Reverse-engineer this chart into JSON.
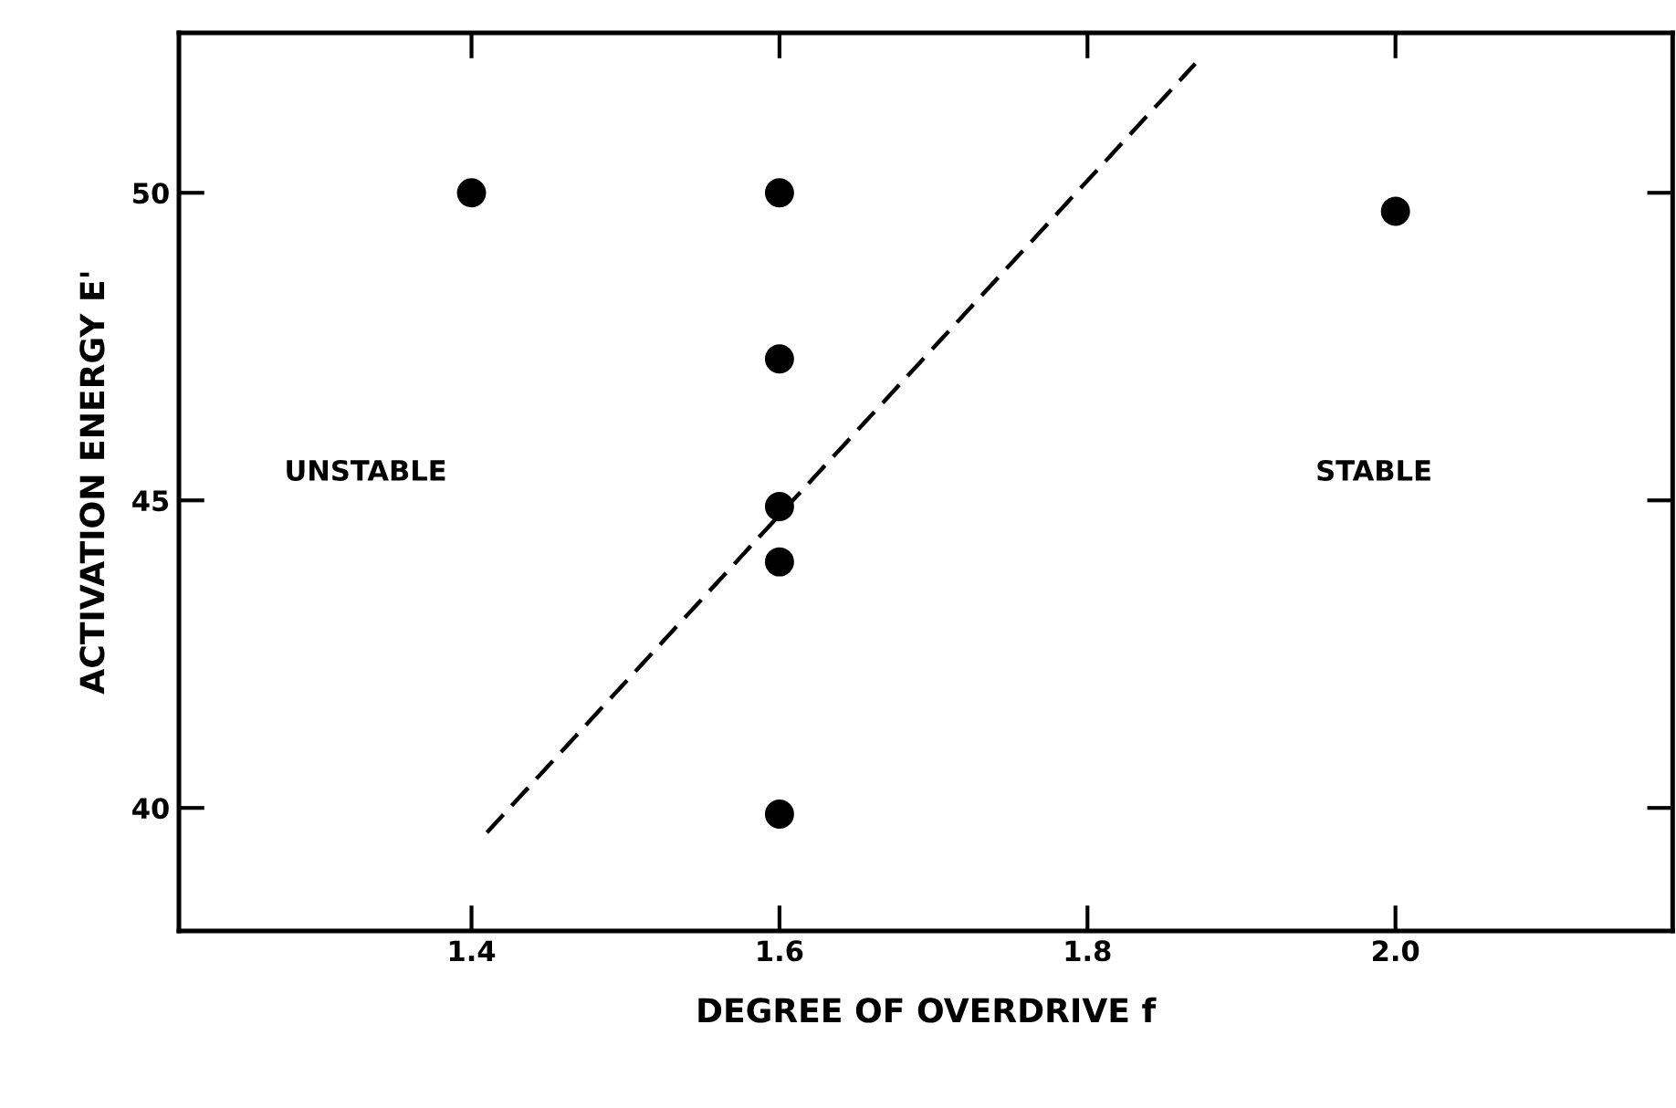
{
  "chart_data": {
    "type": "scatter",
    "xlabel": "DEGREE OF OVERDRIVE f",
    "ylabel": "ACTIVATION ENERGY E'",
    "series": [
      {
        "color": "#000000",
        "marker": "circle",
        "x": [
          1.4,
          1.6,
          1.6,
          1.6,
          1.6,
          1.6,
          2.0
        ],
        "values": [
          50,
          50,
          47.3,
          44.9,
          44.0,
          39.9,
          49.7
        ]
      },
      {
        "type": "line",
        "color": "#000000",
        "line_style": "dashed",
        "marker": "none",
        "x": [
          1.41,
          1.87
        ],
        "values": [
          39.6,
          52.1
        ]
      }
    ],
    "xlim": [
      1.21,
      2.18
    ],
    "ylim": [
      38.0,
      52.6
    ],
    "xticks": [
      1.4,
      1.6,
      1.8,
      {
        "value": 2.0,
        "label": "2.0"
      }
    ],
    "yticks": [
      40,
      45,
      50
    ],
    "annotations": [
      "UNSTABLE",
      "STABLE"
    ],
    "grid": false,
    "legend": false
  }
}
